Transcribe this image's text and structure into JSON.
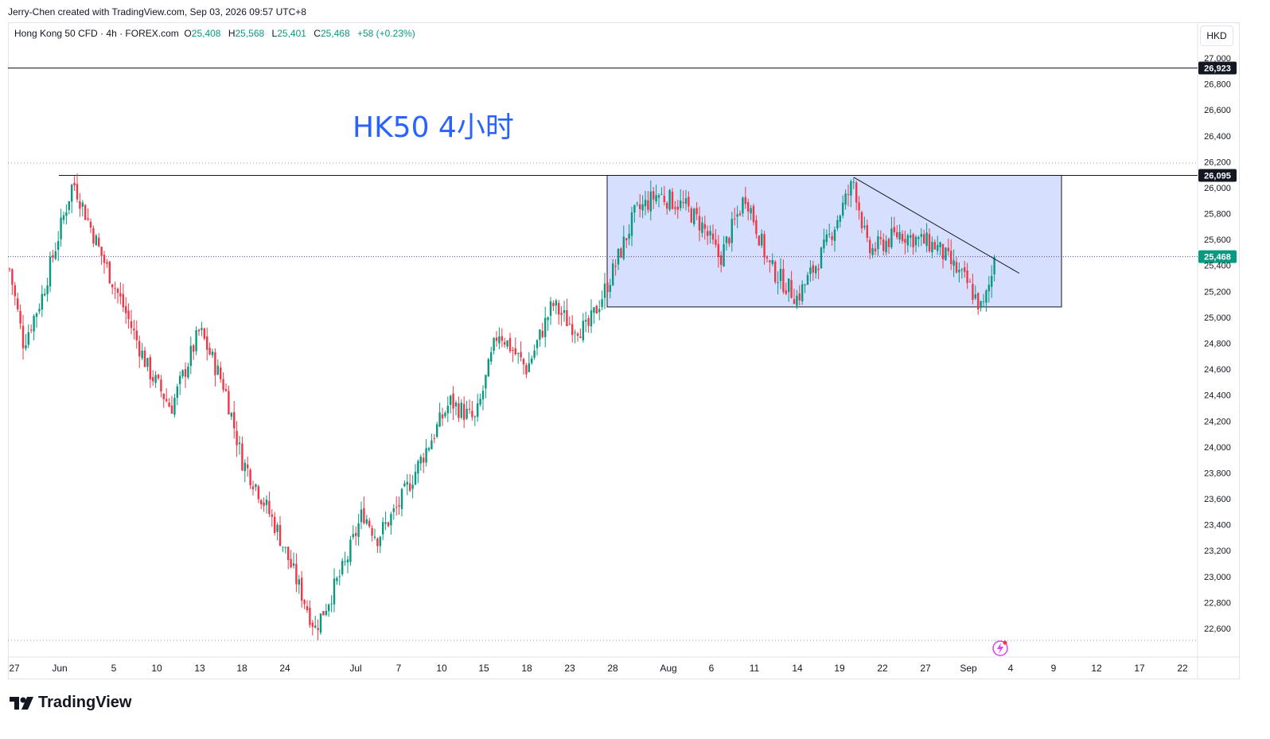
{
  "header": {
    "credit": "Jerry-Chen created with TradingView.com, Sep 03, 2026 09:57 UTC+8",
    "symbol": "Hong Kong 50 CFD · 4h · FOREX.com",
    "o_label": "O",
    "o_value": "25,408",
    "h_label": "H",
    "h_value": "25,568",
    "l_label": "L",
    "l_value": "25,401",
    "c_label": "C",
    "c_value": "25,468",
    "change": "+58 (+0.23%)",
    "currency": "HKD"
  },
  "footer": {
    "brand": "TradingView"
  },
  "colors": {
    "up": "#089981",
    "down": "#f23645",
    "text_annotation": "#2962ff",
    "box_fill": "#d1dcfd",
    "box_stroke": "#131722"
  },
  "chart_data": {
    "type": "candlestick",
    "title": "",
    "annotation": "HK50 4小时",
    "y_axis": {
      "min": 22500,
      "max": 27100,
      "ticks": [
        "22,600",
        "22,800",
        "23,000",
        "23,200",
        "23,400",
        "23,600",
        "23,800",
        "24,000",
        "24,200",
        "24,400",
        "24,600",
        "24,800",
        "25,000",
        "25,200",
        "25,400",
        "25,600",
        "25,800",
        "26,000",
        "26,200",
        "26,400",
        "26,600",
        "26,800",
        "27,000"
      ]
    },
    "x_axis": {
      "ticks": [
        "27",
        "Jun",
        "5",
        "10",
        "13",
        "18",
        "24",
        "Jul",
        "7",
        "10",
        "15",
        "18",
        "23",
        "28",
        "Aug",
        "6",
        "11",
        "14",
        "19",
        "22",
        "27",
        "Sep",
        "4",
        "9",
        "12",
        "17",
        "22"
      ]
    },
    "levels": [
      {
        "name": "resistance-high",
        "value": 26923,
        "label": "26,923",
        "style": "solid"
      },
      {
        "name": "range-top",
        "value": 26095,
        "label": "26,095",
        "style": "solid"
      },
      {
        "name": "current-price",
        "value": 25468,
        "label": "25,468",
        "style": "dotted"
      }
    ],
    "range_box": {
      "top": 26095,
      "bottom": 25080,
      "start_date": "Jul 28",
      "end_date": "Sep 9"
    },
    "trendline": {
      "from": {
        "date": "Aug 21",
        "value": 26080
      },
      "to": {
        "date": "Sep 5",
        "value": 25340
      }
    },
    "anchor_closes": [
      {
        "date": "May 26",
        "close": 25550
      },
      {
        "date": "May 28",
        "close": 24800
      },
      {
        "date": "May 30",
        "close": 25150
      },
      {
        "date": "Jun 2",
        "close": 26050
      },
      {
        "date": "Jun 4",
        "close": 25500
      },
      {
        "date": "Jun 6",
        "close": 25100
      },
      {
        "date": "Jun 9",
        "close": 24600
      },
      {
        "date": "Jun 11",
        "close": 24300
      },
      {
        "date": "Jun 13",
        "close": 24900
      },
      {
        "date": "Jun 16",
        "close": 24450
      },
      {
        "date": "Jun 18",
        "close": 23900
      },
      {
        "date": "Jun 20",
        "close": 23700
      },
      {
        "date": "Jun 23",
        "close": 23350
      },
      {
        "date": "Jun 25",
        "close": 23000
      },
      {
        "date": "Jun 27",
        "close": 22600
      },
      {
        "date": "Jun 30",
        "close": 23100
      },
      {
        "date": "Jul 2",
        "close": 23500
      },
      {
        "date": "Jul 4",
        "close": 23300
      },
      {
        "date": "Jul 7",
        "close": 23550
      },
      {
        "date": "Jul 9",
        "close": 24000
      },
      {
        "date": "Jul 11",
        "close": 24350
      },
      {
        "date": "Jul 14",
        "close": 24200
      },
      {
        "date": "Jul 16",
        "close": 24900
      },
      {
        "date": "Jul 18",
        "close": 24600
      },
      {
        "date": "Jul 21",
        "close": 25100
      },
      {
        "date": "Jul 23",
        "close": 24950
      },
      {
        "date": "Jul 25",
        "close": 24900
      },
      {
        "date": "Jul 28",
        "close": 25350
      },
      {
        "date": "Jul 30",
        "close": 25800
      },
      {
        "date": "Aug 1",
        "close": 25950
      },
      {
        "date": "Aug 4",
        "close": 25850
      },
      {
        "date": "Aug 6",
        "close": 25700
      },
      {
        "date": "Aug 8",
        "close": 25450
      },
      {
        "date": "Aug 11",
        "close": 25950
      },
      {
        "date": "Aug 13",
        "close": 25400
      },
      {
        "date": "Aug 15",
        "close": 25150
      },
      {
        "date": "Aug 18",
        "close": 25500
      },
      {
        "date": "Aug 20",
        "close": 25800
      },
      {
        "date": "Aug 21",
        "close": 26050
      },
      {
        "date": "Aug 22",
        "close": 25500
      },
      {
        "date": "Aug 25",
        "close": 25650
      },
      {
        "date": "Aug 27",
        "close": 25600
      },
      {
        "date": "Aug 29",
        "close": 25550
      },
      {
        "date": "Sep 1",
        "close": 25250
      },
      {
        "date": "Sep 2",
        "close": 25050
      },
      {
        "date": "Sep 3",
        "close": 25468
      }
    ],
    "grid": false,
    "legend_placement": "top-left"
  }
}
